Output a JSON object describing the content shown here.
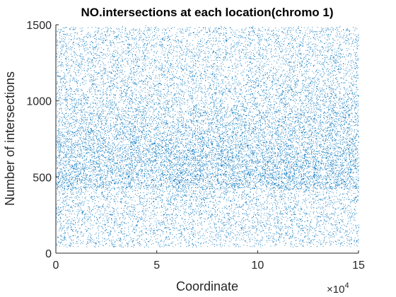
{
  "chart_data": {
    "type": "scatter",
    "title": "NO.intersections at each location(chromo 1)",
    "xlabel": "Coordinate",
    "ylabel": "Number of intersections",
    "x_exponent_label": "×10",
    "x_exponent_power": "4",
    "xlim": [
      0,
      150000
    ],
    "ylim": [
      0,
      1500
    ],
    "x_ticks": [
      0,
      50000,
      100000,
      150000
    ],
    "x_tick_labels": [
      "0",
      "5",
      "10",
      "15"
    ],
    "y_ticks": [
      0,
      500,
      1000,
      1500
    ],
    "y_tick_labels": [
      "0",
      "500",
      "1000",
      "1500"
    ],
    "grid": false,
    "marker_color": "#0072BD",
    "point_count_estimate": 60000,
    "density_profile": {
      "description_regions": [
        {
          "x_range": [
            0,
            150000
          ],
          "y_range": [
            250,
            1480
          ],
          "density": "high"
        },
        {
          "x_range": [
            55000,
            75000
          ],
          "y_range": [
            250,
            700
          ],
          "density": "very high"
        },
        {
          "x_range": [
            0,
            150000
          ],
          "y_range": [
            40,
            250
          ],
          "density": "low"
        }
      ]
    }
  }
}
